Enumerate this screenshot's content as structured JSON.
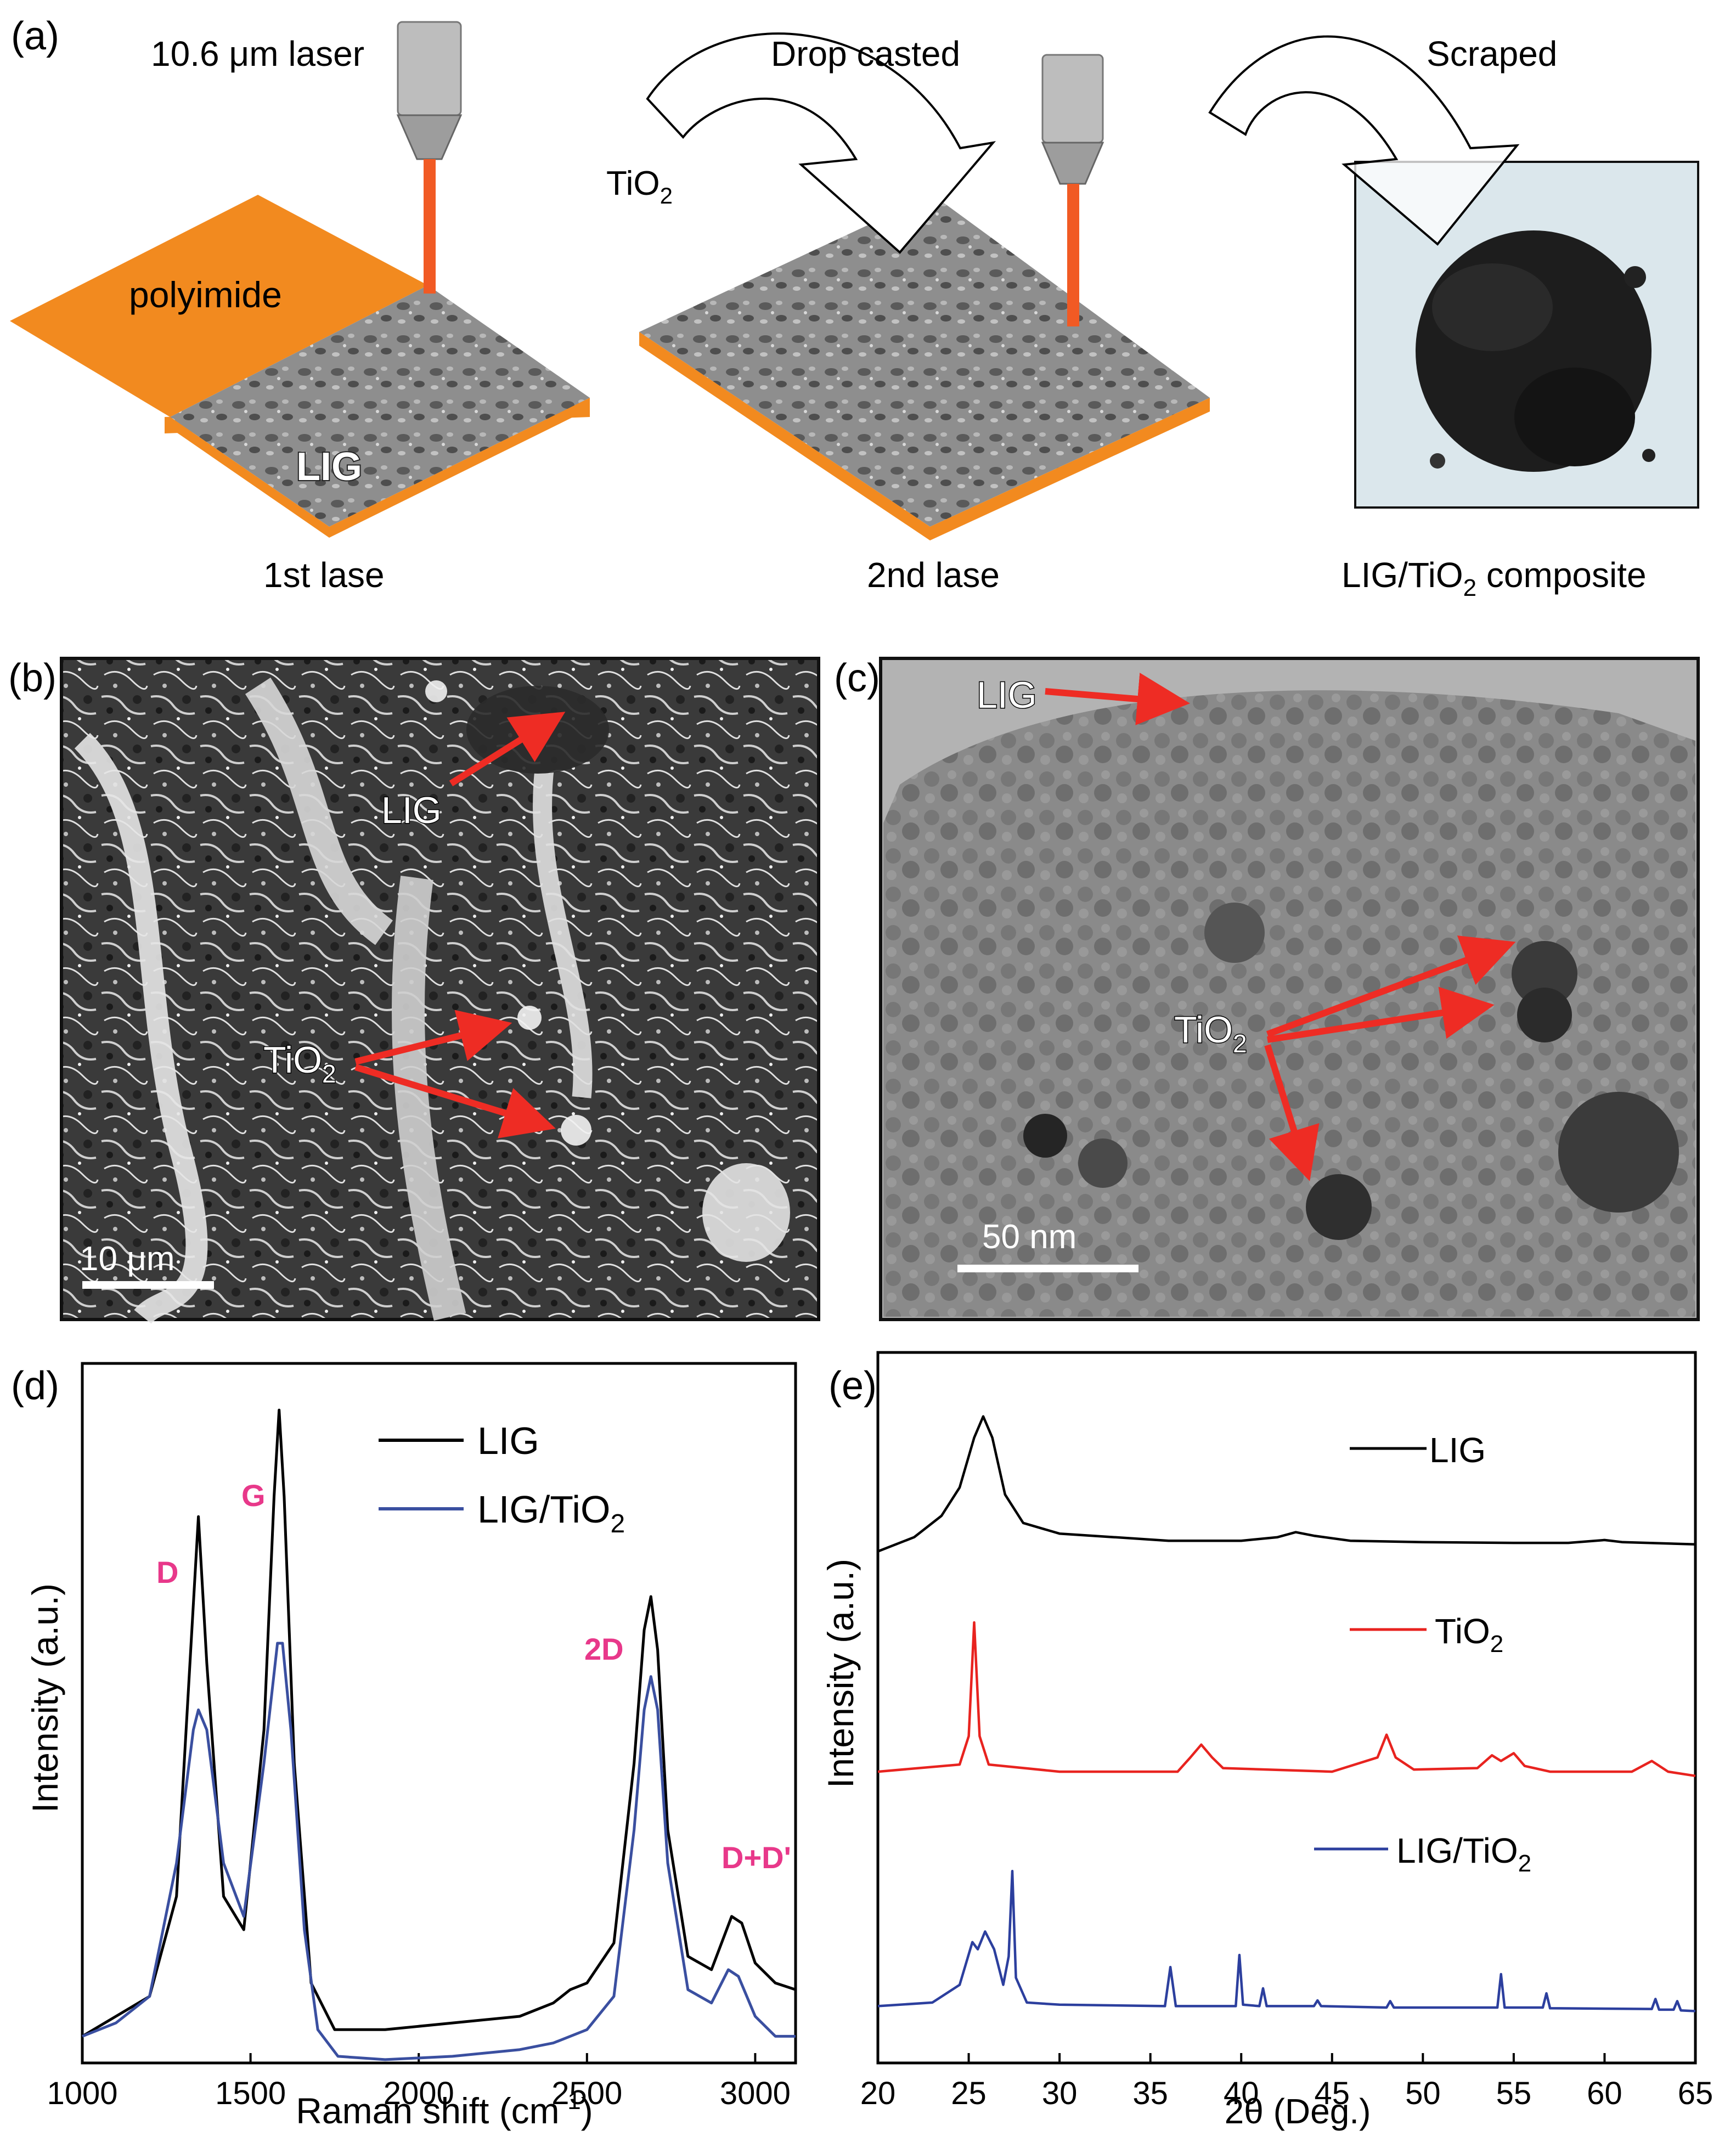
{
  "panel_a": {
    "label": "(a)",
    "laser_label": "10.6 μm laser",
    "drop_cast_label": "Drop casted",
    "scraped_label": "Scraped",
    "tio2_label": "TiO",
    "tio2_sub": "2",
    "polyimide_label": "polyimide",
    "lig_label": "LIG",
    "step1_caption": "1st lase",
    "step2_caption": "2nd lase",
    "step3_caption_main": "LIG/TiO",
    "step3_caption_sub": "2",
    "step3_caption_tail": " composite",
    "colors": {
      "polyimide": "#f28a1f",
      "laser": "#f15a24",
      "lig": "#8c8c8c"
    }
  },
  "panel_b": {
    "label": "(b)",
    "lig_label": "LIG",
    "tio2_label": "TiO",
    "tio2_sub": "2",
    "scalebar_label": "10 μm"
  },
  "panel_c": {
    "label": "(c)",
    "lig_label": "LIG",
    "tio2_label": "TiO",
    "tio2_sub": "2",
    "scalebar_label": "50 nm"
  },
  "chart_data": [
    {
      "panel": "(d)",
      "type": "line",
      "xlabel": "Raman shift (cm",
      "xlabel_sup": "-1",
      "xlabel_tail": ")",
      "ylabel": "Intensity (a.u.)",
      "xlim": [
        1000,
        3120
      ],
      "xticks": [
        1000,
        1500,
        2000,
        2500,
        3000
      ],
      "ylim": [
        0,
        1.05
      ],
      "legend_position": "top-right",
      "peak_labels": [
        "D",
        "G",
        "2D",
        "D+D'"
      ],
      "series": [
        {
          "name": "LIG",
          "color": "#000000",
          "points": [
            [
              1000,
              0.04
            ],
            [
              1100,
              0.07
            ],
            [
              1200,
              0.1
            ],
            [
              1280,
              0.25
            ],
            [
              1320,
              0.6
            ],
            [
              1345,
              0.82
            ],
            [
              1370,
              0.6
            ],
            [
              1420,
              0.25
            ],
            [
              1480,
              0.2
            ],
            [
              1540,
              0.5
            ],
            [
              1570,
              0.85
            ],
            [
              1585,
              0.98
            ],
            [
              1600,
              0.85
            ],
            [
              1630,
              0.45
            ],
            [
              1680,
              0.12
            ],
            [
              1750,
              0.05
            ],
            [
              1900,
              0.05
            ],
            [
              2100,
              0.06
            ],
            [
              2300,
              0.07
            ],
            [
              2400,
              0.09
            ],
            [
              2450,
              0.11
            ],
            [
              2500,
              0.12
            ],
            [
              2580,
              0.18
            ],
            [
              2640,
              0.45
            ],
            [
              2670,
              0.65
            ],
            [
              2690,
              0.7
            ],
            [
              2710,
              0.62
            ],
            [
              2740,
              0.35
            ],
            [
              2800,
              0.16
            ],
            [
              2870,
              0.14
            ],
            [
              2930,
              0.22
            ],
            [
              2960,
              0.21
            ],
            [
              3000,
              0.15
            ],
            [
              3060,
              0.12
            ],
            [
              3120,
              0.11
            ]
          ]
        },
        {
          "name": "LIG/TiO",
          "name_sub": "2",
          "color": "#3a4fa0",
          "points": [
            [
              1000,
              0.04
            ],
            [
              1100,
              0.06
            ],
            [
              1200,
              0.1
            ],
            [
              1280,
              0.3
            ],
            [
              1330,
              0.5
            ],
            [
              1345,
              0.53
            ],
            [
              1370,
              0.5
            ],
            [
              1420,
              0.3
            ],
            [
              1480,
              0.22
            ],
            [
              1540,
              0.45
            ],
            [
              1580,
              0.63
            ],
            [
              1595,
              0.63
            ],
            [
              1620,
              0.5
            ],
            [
              1660,
              0.2
            ],
            [
              1700,
              0.05
            ],
            [
              1760,
              0.01
            ],
            [
              1900,
              0.005
            ],
            [
              2100,
              0.01
            ],
            [
              2300,
              0.02
            ],
            [
              2400,
              0.03
            ],
            [
              2500,
              0.05
            ],
            [
              2580,
              0.1
            ],
            [
              2640,
              0.35
            ],
            [
              2670,
              0.53
            ],
            [
              2690,
              0.58
            ],
            [
              2710,
              0.53
            ],
            [
              2740,
              0.3
            ],
            [
              2800,
              0.11
            ],
            [
              2870,
              0.09
            ],
            [
              2920,
              0.14
            ],
            [
              2950,
              0.13
            ],
            [
              3000,
              0.07
            ],
            [
              3060,
              0.04
            ],
            [
              3120,
              0.04
            ]
          ]
        }
      ]
    },
    {
      "panel": "(e)",
      "type": "line",
      "xlabel": "2θ (Deg.)",
      "ylabel": "Intensity (a.u.)",
      "xlim": [
        20,
        65
      ],
      "xticks": [
        20,
        25,
        30,
        35,
        40,
        45,
        50,
        55,
        60,
        65
      ],
      "legend_position": "inline",
      "series": [
        {
          "name": "LIG",
          "color": "#000000",
          "points": [
            [
              20,
              0.72
            ],
            [
              22,
              0.74
            ],
            [
              23.5,
              0.77
            ],
            [
              24.5,
              0.81
            ],
            [
              25.3,
              0.88
            ],
            [
              25.8,
              0.91
            ],
            [
              26.3,
              0.88
            ],
            [
              27,
              0.8
            ],
            [
              28,
              0.76
            ],
            [
              30,
              0.745
            ],
            [
              33,
              0.74
            ],
            [
              36,
              0.735
            ],
            [
              40,
              0.735
            ],
            [
              42,
              0.74
            ],
            [
              43,
              0.747
            ],
            [
              44,
              0.742
            ],
            [
              46,
              0.735
            ],
            [
              50,
              0.733
            ],
            [
              55,
              0.732
            ],
            [
              58,
              0.732
            ],
            [
              60,
              0.736
            ],
            [
              61,
              0.733
            ],
            [
              65,
              0.73
            ]
          ]
        },
        {
          "name": "TiO",
          "name_sub": "2",
          "color": "#e8231f",
          "points": [
            [
              20,
              0.41
            ],
            [
              24.5,
              0.42
            ],
            [
              25,
              0.46
            ],
            [
              25.3,
              0.62
            ],
            [
              25.6,
              0.46
            ],
            [
              26.1,
              0.42
            ],
            [
              30,
              0.41
            ],
            [
              36.5,
              0.41
            ],
            [
              37.2,
              0.43
            ],
            [
              37.8,
              0.448
            ],
            [
              38.4,
              0.43
            ],
            [
              39,
              0.415
            ],
            [
              45,
              0.41
            ],
            [
              47.5,
              0.43
            ],
            [
              48,
              0.462
            ],
            [
              48.5,
              0.43
            ],
            [
              49.5,
              0.413
            ],
            [
              53,
              0.415
            ],
            [
              53.8,
              0.433
            ],
            [
              54.3,
              0.425
            ],
            [
              55,
              0.436
            ],
            [
              55.6,
              0.418
            ],
            [
              57,
              0.41
            ],
            [
              61.5,
              0.41
            ],
            [
              62.6,
              0.425
            ],
            [
              63.5,
              0.41
            ],
            [
              65,
              0.404
            ]
          ]
        },
        {
          "name": "LIG/TiO",
          "name_sub": "2",
          "color": "#2c3f9e",
          "points": [
            [
              20,
              0.08
            ],
            [
              23,
              0.085
            ],
            [
              24.5,
              0.11
            ],
            [
              25.2,
              0.17
            ],
            [
              25.5,
              0.16
            ],
            [
              25.9,
              0.185
            ],
            [
              26.4,
              0.16
            ],
            [
              26.9,
              0.11
            ],
            [
              27.2,
              0.15
            ],
            [
              27.4,
              0.27
            ],
            [
              27.6,
              0.12
            ],
            [
              28.2,
              0.085
            ],
            [
              30,
              0.082
            ],
            [
              35.8,
              0.08
            ],
            [
              36.1,
              0.135
            ],
            [
              36.4,
              0.08
            ],
            [
              39.7,
              0.08
            ],
            [
              39.9,
              0.152
            ],
            [
              40.1,
              0.082
            ],
            [
              41,
              0.08
            ],
            [
              41.2,
              0.105
            ],
            [
              41.4,
              0.08
            ],
            [
              44,
              0.08
            ],
            [
              44.2,
              0.088
            ],
            [
              44.4,
              0.08
            ],
            [
              48,
              0.078
            ],
            [
              48.2,
              0.087
            ],
            [
              48.4,
              0.078
            ],
            [
              54.1,
              0.078
            ],
            [
              54.3,
              0.125
            ],
            [
              54.5,
              0.078
            ],
            [
              56.6,
              0.078
            ],
            [
              56.8,
              0.098
            ],
            [
              57,
              0.077
            ],
            [
              62.6,
              0.076
            ],
            [
              62.8,
              0.09
            ],
            [
              63,
              0.075
            ],
            [
              63.8,
              0.075
            ],
            [
              64,
              0.087
            ],
            [
              64.2,
              0.074
            ],
            [
              65,
              0.073
            ]
          ]
        }
      ]
    }
  ]
}
